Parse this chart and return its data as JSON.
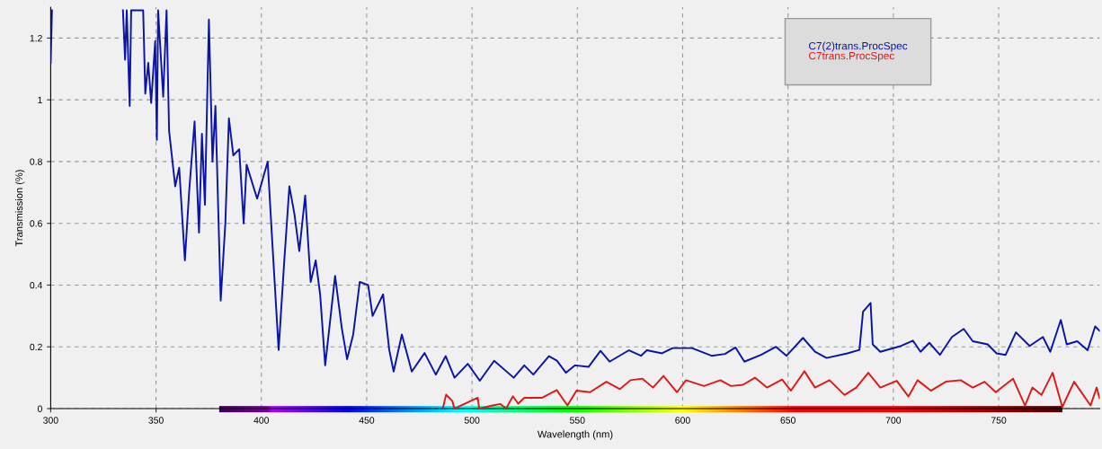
{
  "chart_data": {
    "type": "line",
    "xlabel": "Wavelength (nm)",
    "ylabel": "Transmission (%)",
    "xlim": [
      300,
      798
    ],
    "ylim": [
      0,
      1.3
    ],
    "xticks": [
      300,
      350,
      400,
      450,
      500,
      550,
      600,
      650,
      700,
      750
    ],
    "yticks": [
      0,
      0.2,
      0.4,
      0.6,
      0.8,
      1,
      1.2
    ],
    "grid": true,
    "legend": "top right",
    "line_style": "solid",
    "marker": "none",
    "series": [
      {
        "name": "C7(2)trans.ProcSpec",
        "color": "#0a14a8",
        "x": [
          300,
          300.6,
          301,
          334.3,
          335.3,
          336.1,
          337.5,
          338.2,
          343.9,
          344.9,
          346.3,
          347.7,
          349.6,
          350.4,
          351,
          353.4,
          355,
          356.2,
          359.1,
          361,
          363.7,
          365.7,
          368.3,
          370.4,
          371.8,
          373.2,
          375.1,
          376.8,
          378.2,
          380.7,
          382.9,
          384.6,
          386.7,
          389.5,
          391.6,
          393,
          398,
          403,
          405.1,
          408.2,
          410.8,
          413.3,
          415.7,
          418,
          420.8,
          423.4,
          425.8,
          427.9,
          430.3,
          435,
          438.2,
          440.7,
          443.6,
          446.7,
          450.7,
          452.8,
          457.8,
          460.7,
          462.8,
          466.7,
          471.4,
          477.5,
          482.8,
          487.5,
          491.7,
          498,
          503.7,
          510.5,
          519.8,
          524.8,
          529.1,
          536.5,
          540.3,
          544.6,
          548.9,
          555.3,
          561,
          565.3,
          574.5,
          580.2,
          583,
          590.2,
          595.2,
          604.4,
          613.7,
          620.1,
          625.1,
          629.3,
          637.2,
          644.3,
          649.3,
          657.1,
          662.8,
          668.3,
          678.2,
          683.9,
          685.6,
          689.2,
          690.2,
          693.8,
          703.7,
          709.3,
          712.9,
          717.1,
          722.1,
          727.8,
          733.4,
          737.7,
          744.8,
          749,
          753.3,
          758.2,
          764.7,
          771,
          774.5,
          779.5,
          782.3,
          787.3,
          792.2,
          795.8,
          797.9
        ],
        "values": [
          1.12,
          1.29,
          null,
          1.29,
          1.13,
          1.29,
          0.98,
          1.29,
          1.29,
          1.02,
          1.12,
          0.99,
          1.19,
          0.87,
          1.29,
          1.01,
          1.29,
          0.9,
          0.72,
          0.78,
          0.48,
          0.7,
          0.93,
          0.57,
          0.89,
          0.66,
          1.26,
          0.8,
          0.98,
          0.35,
          0.6,
          0.94,
          0.82,
          0.84,
          0.6,
          0.79,
          0.68,
          0.8,
          0.55,
          0.19,
          0.47,
          0.72,
          0.63,
          0.51,
          0.69,
          0.41,
          0.48,
          0.37,
          0.14,
          0.43,
          0.26,
          0.16,
          0.24,
          0.41,
          0.4,
          0.3,
          0.37,
          0.19,
          0.12,
          0.24,
          0.12,
          0.18,
          0.11,
          0.17,
          0.1,
          0.145,
          0.09,
          0.155,
          0.1,
          0.14,
          0.11,
          0.17,
          0.155,
          0.116,
          0.14,
          0.135,
          0.187,
          0.152,
          0.189,
          0.171,
          0.189,
          0.179,
          0.196,
          0.196,
          0.171,
          0.177,
          0.198,
          0.152,
          0.174,
          0.2,
          0.171,
          0.229,
          0.184,
          0.164,
          0.179,
          0.19,
          0.314,
          0.342,
          0.208,
          0.184,
          0.203,
          0.22,
          0.184,
          0.213,
          0.174,
          0.232,
          0.258,
          0.218,
          0.208,
          0.179,
          0.174,
          0.247,
          0.203,
          0.232,
          0.184,
          0.287,
          0.208,
          0.218,
          0.189,
          0.266,
          0.252
        ]
      },
      {
        "name": "C7trans.ProcSpec",
        "color": "#e01818",
        "x": [
          486.3,
          487.7,
          490.6,
          491.7,
          502.7,
          503.4,
          509.8,
          513.4,
          516.2,
          519.4,
          521.9,
          524.8,
          533.3,
          540.2,
          545.3,
          549.6,
          556,
          563.8,
          570.2,
          575.2,
          580.9,
          585.9,
          590.9,
          597.3,
          601.6,
          610.1,
          617.9,
          622.9,
          628.6,
          634.3,
          640,
          647.2,
          651.4,
          657.8,
          662.8,
          669.7,
          676.8,
          682.4,
          688.1,
          693.8,
          701.6,
          707.2,
          711.5,
          717.8,
          724.9,
          732,
          737.7,
          743.3,
          748.6,
          756.8,
          762.5,
          766,
          770.3,
          775.6,
          780.2,
          785.8,
          793.6,
          796.5,
          797.9
        ],
        "values": [
          0.005,
          0.045,
          0.025,
          0,
          0.035,
          0,
          0.01,
          0.015,
          0,
          0.04,
          0.016,
          0.035,
          0.035,
          0.06,
          0.01,
          0.058,
          0.053,
          0.087,
          0.063,
          0.092,
          0.097,
          0.068,
          0.106,
          0.053,
          0.092,
          0.073,
          0.092,
          0.073,
          0.077,
          0.1,
          0.068,
          0.094,
          0.058,
          0.121,
          0.068,
          0.092,
          0.044,
          0.068,
          0.116,
          0.068,
          0.09,
          0.039,
          0.092,
          0.058,
          0.087,
          0.092,
          0.068,
          0.087,
          0.053,
          0.097,
          0.01,
          0.068,
          0.044,
          0.116,
          0.005,
          0.087,
          0.01,
          0.068,
          0.034
        ]
      }
    ]
  }
}
